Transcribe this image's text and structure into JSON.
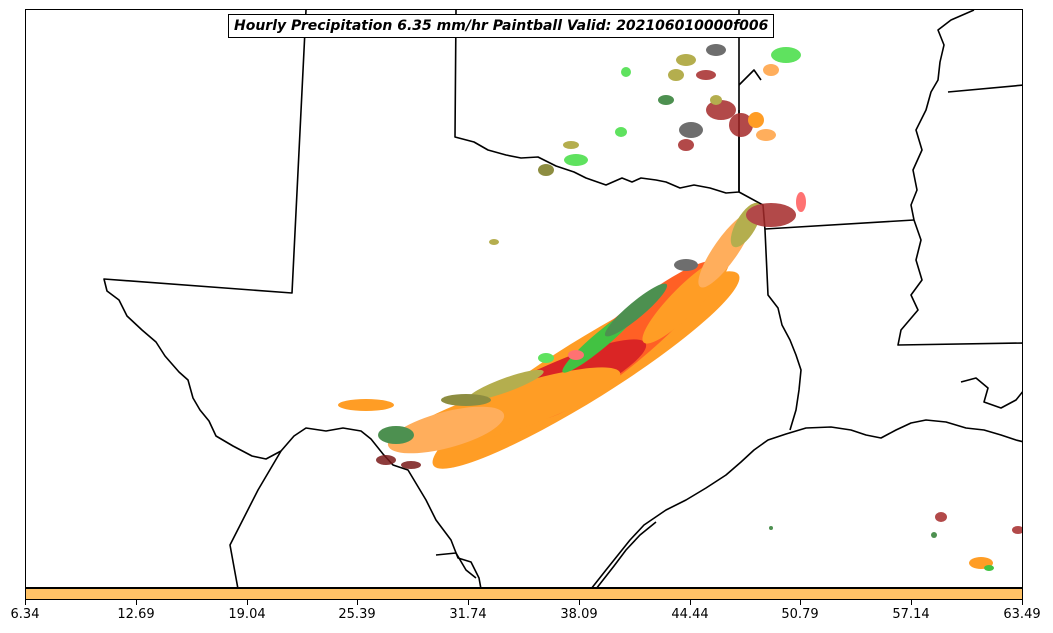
{
  "title": "Hourly Precipitation 6.35 mm/hr Paintball Valid: 202106010000f006",
  "colorbar": {
    "color": "#ffc266",
    "ticks": [
      "6.34",
      "12.69",
      "19.04",
      "25.39",
      "31.74",
      "38.09",
      "44.44",
      "50.79",
      "57.14",
      "63.49"
    ]
  },
  "colors": {
    "orange": "#ff8c00",
    "orange_light": "#ffa040",
    "red_orange": "#ff4500",
    "red": "#d40000",
    "light_red": "#ff5a5a",
    "dark_red": "#a52a2a",
    "maroon": "#7a1a1a",
    "olive": "#a8a030",
    "olive_dark": "#7a7a20",
    "green": "#22b822",
    "light_green": "#44dd44",
    "dark_green": "#2e7d32",
    "gray": "#555555",
    "boundary": "#000000"
  }
}
